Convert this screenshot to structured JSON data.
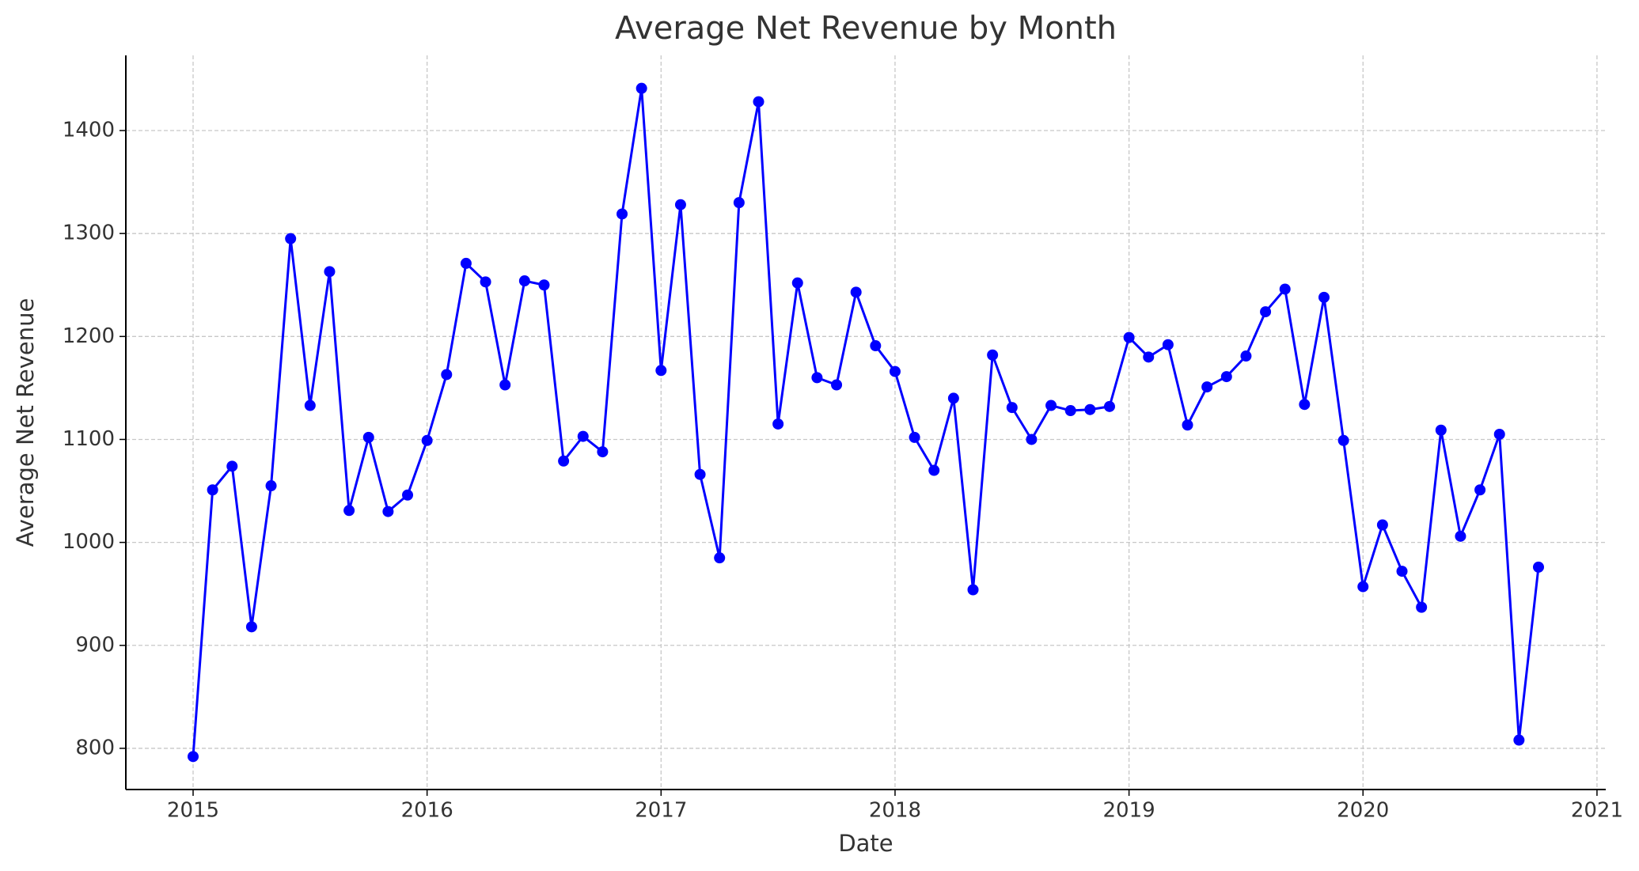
{
  "chart_data": {
    "type": "line",
    "title": "Average Net Revenue by Month",
    "x_label": "Date",
    "y_label": "Average Net Revenue",
    "x": [
      "2015-01",
      "2015-02",
      "2015-03",
      "2015-04",
      "2015-05",
      "2015-06",
      "2015-07",
      "2015-08",
      "2015-09",
      "2015-10",
      "2015-11",
      "2015-12",
      "2016-01",
      "2016-02",
      "2016-03",
      "2016-04",
      "2016-05",
      "2016-06",
      "2016-07",
      "2016-08",
      "2016-09",
      "2016-10",
      "2016-11",
      "2016-12",
      "2017-01",
      "2017-02",
      "2017-03",
      "2017-04",
      "2017-05",
      "2017-06",
      "2017-07",
      "2017-08",
      "2017-09",
      "2017-10",
      "2017-11",
      "2017-12",
      "2018-01",
      "2018-02",
      "2018-03",
      "2018-04",
      "2018-05",
      "2018-06",
      "2018-07",
      "2018-08",
      "2018-09",
      "2018-10",
      "2018-11",
      "2018-12",
      "2019-01",
      "2019-02",
      "2019-03",
      "2019-04",
      "2019-05",
      "2019-06",
      "2019-07",
      "2019-08",
      "2019-09",
      "2019-10",
      "2019-11",
      "2019-12",
      "2020-01",
      "2020-02",
      "2020-03",
      "2020-04",
      "2020-05",
      "2020-06",
      "2020-07",
      "2020-08",
      "2020-09",
      "2020-10"
    ],
    "series": [
      {
        "name": "Average Net Revenue",
        "color": "#0000ff",
        "values": [
          792,
          1051,
          1074,
          918,
          1055,
          1295,
          1133,
          1263,
          1031,
          1102,
          1030,
          1046,
          1099,
          1163,
          1271,
          1253,
          1153,
          1254,
          1250,
          1079,
          1103,
          1088,
          1319,
          1441,
          1167,
          1328,
          1066,
          985,
          1330,
          1428,
          1115,
          1252,
          1160,
          1153,
          1243,
          1191,
          1166,
          1102,
          1070,
          1140,
          954,
          1182,
          1131,
          1100,
          1133,
          1128,
          1129,
          1132,
          1199,
          1180,
          1192,
          1114,
          1151,
          1161,
          1181,
          1224,
          1246,
          1134,
          1238,
          1099,
          957,
          1017,
          972,
          937,
          1109,
          1006,
          1051,
          1105,
          808,
          976
        ]
      }
    ],
    "xlim": [
      2014.7125,
      2021.0375
    ],
    "xticks": [
      2015,
      2016,
      2017,
      2018,
      2019,
      2020,
      2021
    ],
    "ylim": [
      760,
      1473
    ],
    "yticks": [
      800,
      900,
      1000,
      1100,
      1200,
      1300,
      1400
    ],
    "grid": true
  }
}
